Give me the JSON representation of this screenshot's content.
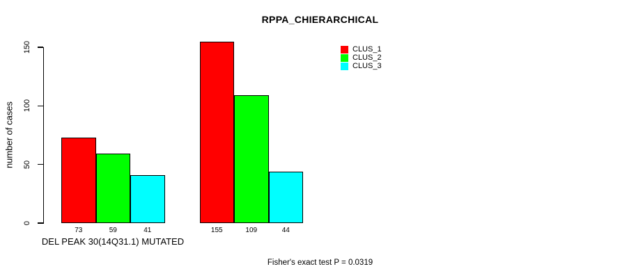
{
  "title": "RPPA_CHIERARCHICAL",
  "footer": {
    "stat_text": "Fisher's exact test P = 0.0319"
  },
  "colors": {
    "background": "#ffffff",
    "axis": "#000000",
    "bar_border": "#000000",
    "text": "#000000"
  },
  "chart_data": {
    "type": "bar",
    "title": "RPPA_CHIERARCHICAL",
    "ylabel": "number of cases",
    "xlabel": "DEL PEAK 30(14Q31.1) MUTATED",
    "ylim": [
      0,
      150
    ],
    "yticks": [
      0,
      50,
      100,
      150
    ],
    "grid": false,
    "legend_position": "top-right",
    "series": [
      {
        "name": "CLUS_1",
        "color": "#ff0000"
      },
      {
        "name": "CLUS_2",
        "color": "#00ff00"
      },
      {
        "name": "CLUS_3",
        "color": "#00ffff"
      }
    ],
    "groups": [
      {
        "label": "DEL PEAK 30(14Q31.1) MUTATED",
        "values": [
          73,
          59,
          41
        ],
        "value_labels": [
          "73",
          "59",
          "41"
        ]
      },
      {
        "label": "",
        "values": [
          155,
          109,
          44
        ],
        "value_labels": [
          "155",
          "109",
          "44"
        ]
      }
    ]
  }
}
